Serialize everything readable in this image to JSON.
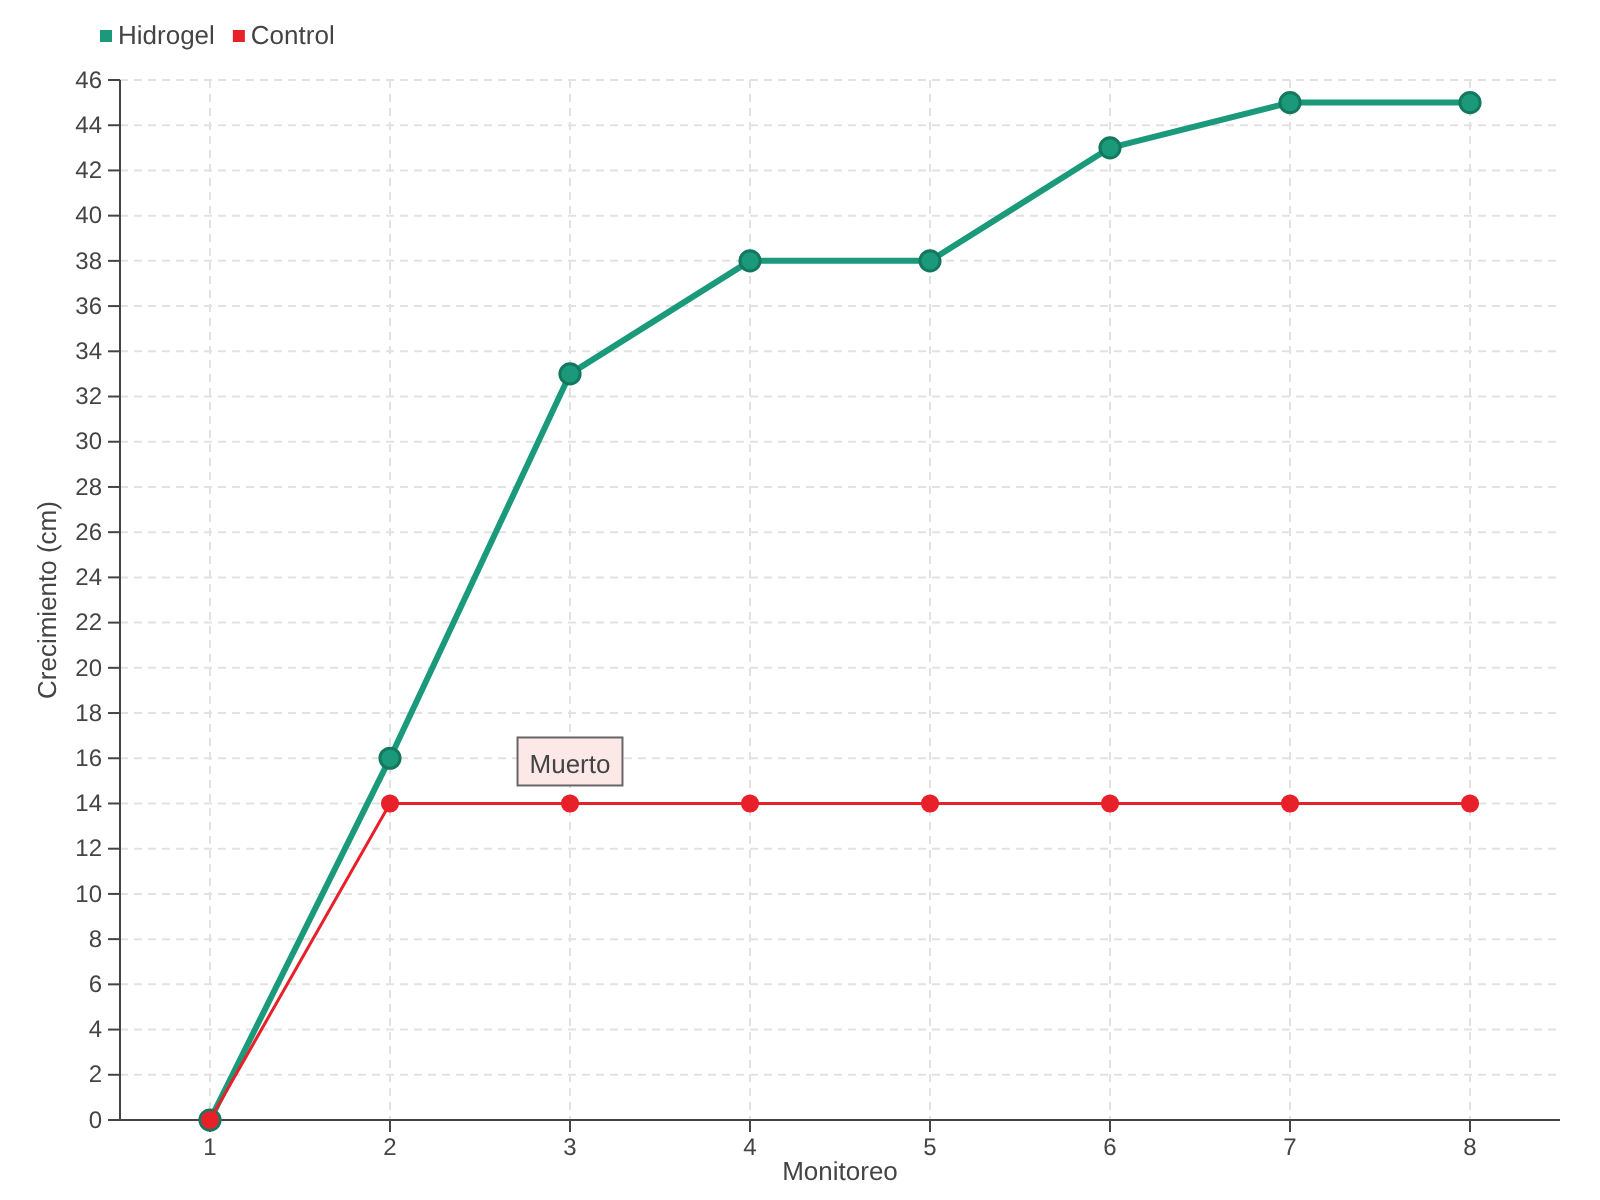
{
  "chart_data": {
    "type": "line",
    "xlabel": "Monitoreo",
    "ylabel": "Crecimiento (cm)",
    "x": [
      1,
      2,
      3,
      4,
      5,
      6,
      7,
      8
    ],
    "xlim": [
      0.5,
      8.5
    ],
    "xticks": [
      1,
      2,
      3,
      4,
      5,
      6,
      7,
      8
    ],
    "ylim": [
      0,
      46
    ],
    "yticks": [
      0,
      2,
      4,
      6,
      8,
      10,
      12,
      14,
      16,
      18,
      20,
      22,
      24,
      26,
      28,
      30,
      32,
      34,
      36,
      38,
      40,
      42,
      44,
      46
    ],
    "series": [
      {
        "name": "Hidrogel",
        "color": "#1a9a7a",
        "values": [
          0,
          16,
          33,
          38,
          38,
          43,
          45,
          45
        ]
      },
      {
        "name": "Control",
        "color": "#e8202a",
        "values": [
          0,
          14,
          14,
          14,
          14,
          14,
          14,
          14
        ]
      }
    ],
    "annotations": [
      {
        "text": "Muerto",
        "x": 3,
        "y": 14
      }
    ],
    "grid": true,
    "legend": "top left",
    "marker": "circle",
    "line_style": "solid"
  }
}
